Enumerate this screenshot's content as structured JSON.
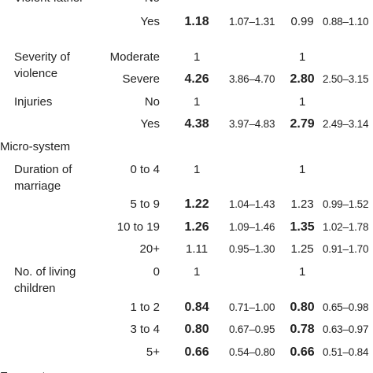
{
  "table": {
    "rows": [
      {
        "variable": "Violent father",
        "category": "No"
      },
      {
        "category": "Yes",
        "or1": "1.18",
        "ci1": "1.07–1.31",
        "or2": "0.99",
        "ci2": "0.88–1.10",
        "bold": [
          "or1"
        ]
      },
      {
        "variable": "Severity of violence",
        "category": "Moderate",
        "or1": "1",
        "or2": "1"
      },
      {
        "category": "Severe",
        "or1": "4.26",
        "ci1": "3.86–4.70",
        "or2": "2.80",
        "ci2": "2.50–3.15",
        "bold": [
          "or1",
          "or2"
        ]
      },
      {
        "variable": "Injuries",
        "category": "No",
        "or1": "1",
        "or2": "1"
      },
      {
        "category": "Yes",
        "or1": "4.38",
        "ci1": "3.97–4.83",
        "or2": "2.79",
        "ci2": "2.49–3.14",
        "bold": [
          "or1",
          "or2"
        ]
      },
      {
        "section": "Micro-system"
      },
      {
        "variable": "Duration of marriage",
        "category": "0 to 4",
        "or1": "1",
        "or2": "1"
      },
      {
        "category": "5 to 9",
        "or1": "1.22",
        "ci1": "1.04–1.43",
        "or2": "1.23",
        "ci2": "0.99–1.52",
        "bold": [
          "or1"
        ]
      },
      {
        "category": "10 to 19",
        "or1": "1.26",
        "ci1": "1.09–1.46",
        "or2": "1.35",
        "ci2": "1.02–1.78",
        "bold": [
          "or1",
          "or2"
        ]
      },
      {
        "category": "20+",
        "or1": "1.11",
        "ci1": "0.95–1.30",
        "or2": "1.25",
        "ci2": "0.91–1.70"
      },
      {
        "variable": "No. of living children",
        "category": "0",
        "or1": "1",
        "or2": "1"
      },
      {
        "category": "1 to 2",
        "or1": "0.84",
        "ci1": "0.71–1.00",
        "or2": "0.80",
        "ci2": "0.65–0.98",
        "bold": [
          "or1",
          "or2"
        ]
      },
      {
        "category": "3 to 4",
        "or1": "0.80",
        "ci1": "0.67–0.95",
        "or2": "0.78",
        "ci2": "0.63–0.97",
        "bold": [
          "or1",
          "or2"
        ]
      },
      {
        "category": "5+",
        "or1": "0.66",
        "ci1": "0.54–0.80",
        "or2": "0.66",
        "ci2": "0.51–0.84",
        "bold": [
          "or1",
          "or2"
        ]
      },
      {
        "section": "Exo-system"
      }
    ]
  }
}
